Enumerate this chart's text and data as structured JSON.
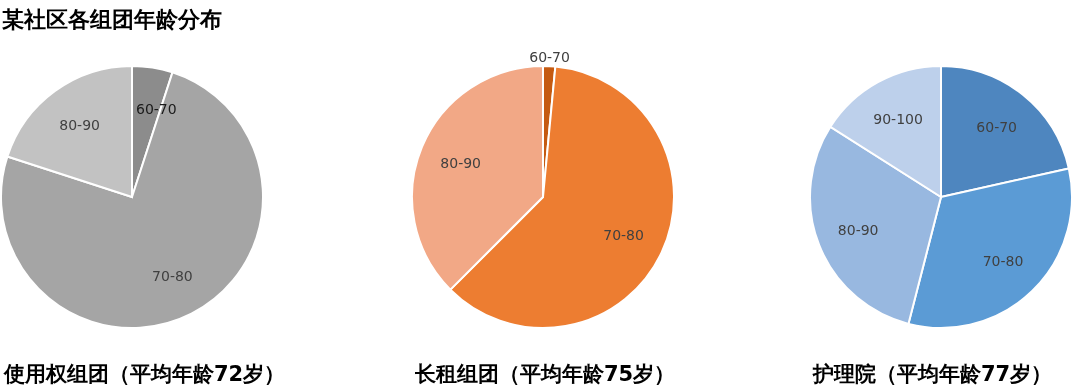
{
  "chart_data": [
    {
      "type": "pie",
      "title": "某社区各组团年龄分布",
      "xlabel": "使用权组团（平均年龄72岁）",
      "categories": [
        "60-70",
        "70-80",
        "80-90"
      ],
      "values": [
        5,
        75,
        20
      ],
      "colors": [
        "#8c8c8c",
        "#a5a5a5",
        "#c2c2c2"
      ]
    },
    {
      "type": "pie",
      "xlabel": "长租组团（平均年龄75岁）",
      "categories": [
        "60-70",
        "70-80",
        "80-90"
      ],
      "values": [
        1.5,
        61,
        37.5
      ],
      "colors": [
        "#c55a11",
        "#ed7d31",
        "#f2a886"
      ]
    },
    {
      "type": "pie",
      "xlabel": "护理院（平均年龄77岁）",
      "categories": [
        "60-70",
        "70-80",
        "80-90",
        "90-100"
      ],
      "values": [
        21.5,
        32.5,
        30,
        16
      ],
      "colors": [
        "#4e86bf",
        "#5b9bd5",
        "#98b8e0",
        "#bdd0eb"
      ]
    }
  ]
}
